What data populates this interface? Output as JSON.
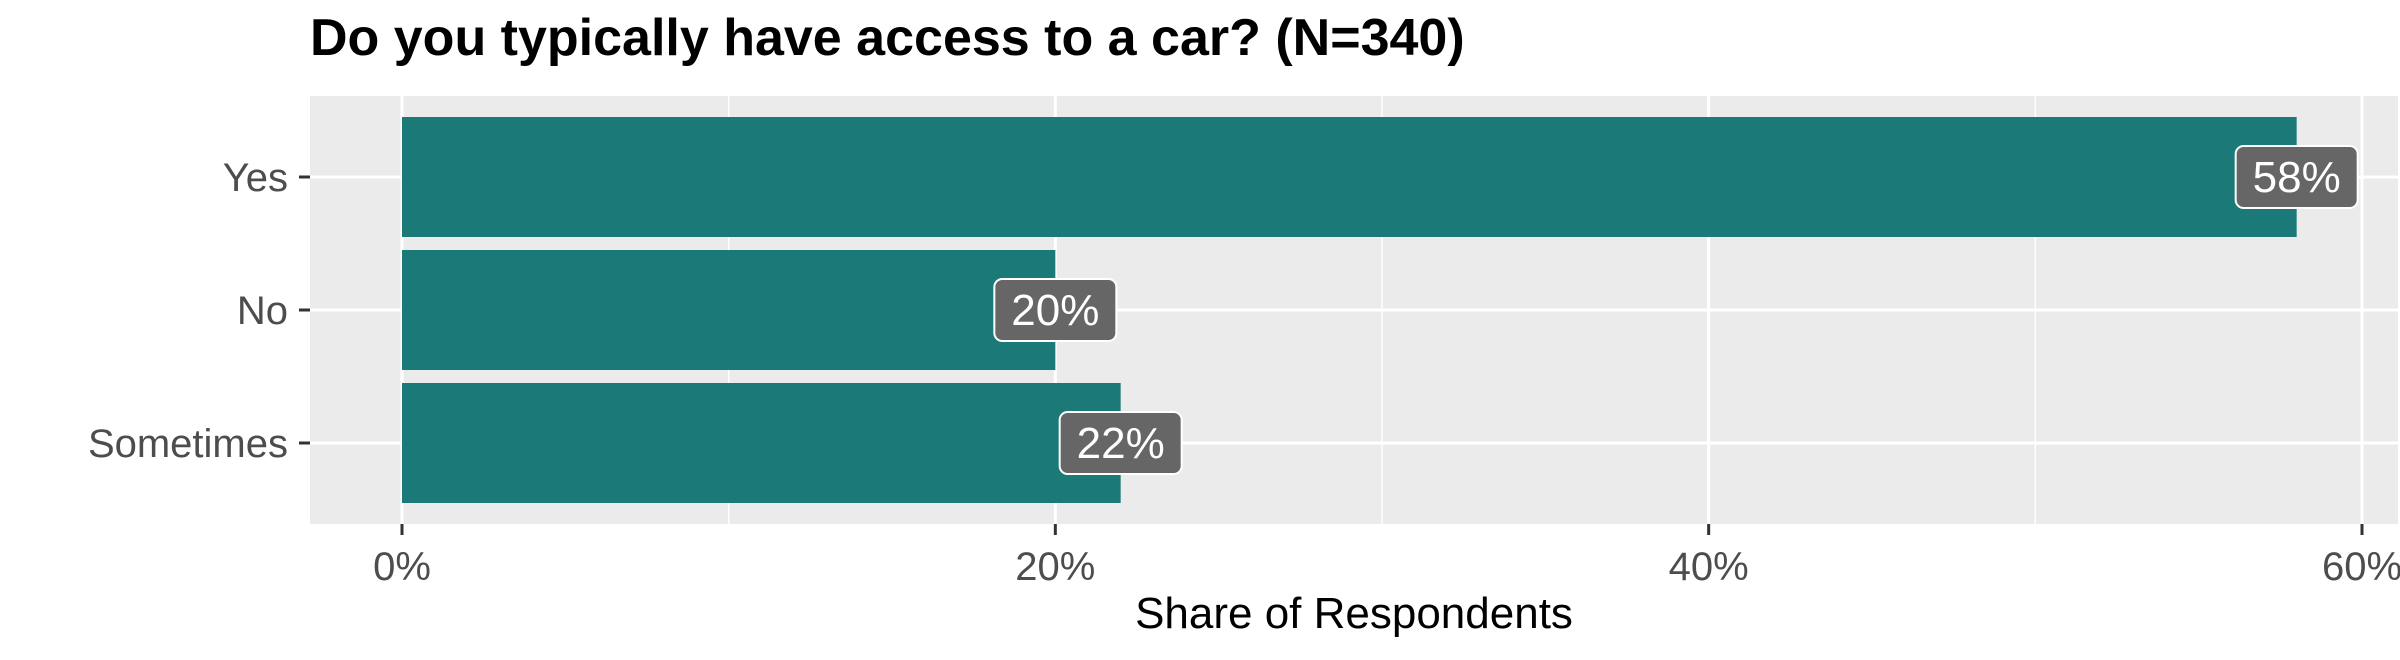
{
  "chart_data": {
    "type": "bar",
    "orientation": "horizontal",
    "title": "Do you typically have access to a car? (N=340)",
    "xlabel": "Share of Respondents",
    "ylabel": "",
    "categories": [
      "Yes",
      "No",
      "Sometimes"
    ],
    "values": [
      0.58,
      0.2,
      0.22
    ],
    "data_labels": [
      "58%",
      "20%",
      "22%"
    ],
    "xlim": [
      0,
      0.6
    ],
    "x_ticks": [
      0,
      0.2,
      0.4,
      0.6
    ],
    "x_tick_labels": [
      "0%",
      "20%",
      "40%",
      "60%"
    ],
    "grid": true,
    "legend": "none",
    "colors": {
      "bar": "#1b7a78",
      "panel": "#ebebeb",
      "grid": "#ffffff",
      "label_box": "#666666"
    }
  }
}
